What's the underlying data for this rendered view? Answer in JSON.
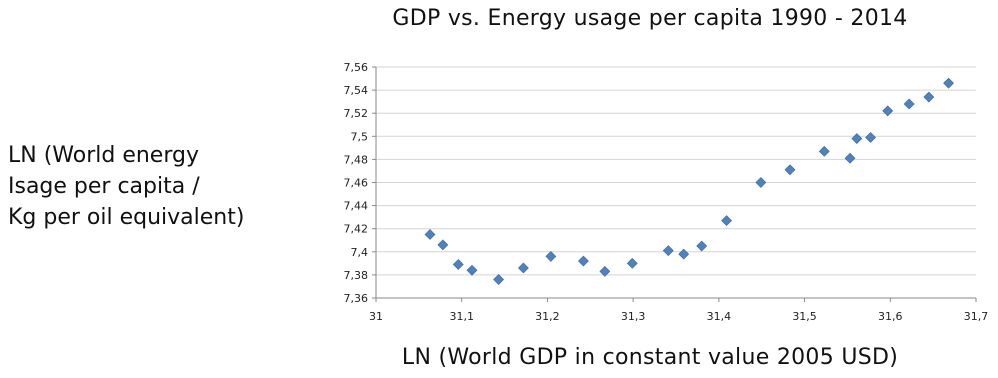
{
  "title_lines": [
    "GDP vs. Energy usage per capita 1990 - 2014"
  ],
  "ylabel_lines": [
    "LN (World energy",
    "Isage per capita /",
    "Kg per oil equivalent)"
  ],
  "xlabel_lines": [
    "LN (World GDP in constant value 2005 USD)"
  ],
  "chart_data": {
    "type": "scatter",
    "title": "GDP vs. Energy usage per capita 1990 - 2014",
    "xlabel": "LN (World GDP in constant value 2005 USD)",
    "ylabel": "LN (World energy Isage per capita / Kg per oil equivalent)",
    "xlim": [
      31,
      31.7
    ],
    "ylim": [
      7.36,
      7.56
    ],
    "x_ticks": [
      "31",
      "31,1",
      "31,2",
      "31,3",
      "31,4",
      "31,5",
      "31,6",
      "31,7"
    ],
    "y_ticks": [
      "7,36",
      "7,38",
      "7,4",
      "7,42",
      "7,44",
      "7,46",
      "7,48",
      "7,5",
      "7,52",
      "7,54",
      "7,56"
    ],
    "x_tick_values": [
      31,
      31.1,
      31.2,
      31.3,
      31.4,
      31.5,
      31.6,
      31.7
    ],
    "y_tick_values": [
      7.36,
      7.38,
      7.4,
      7.42,
      7.44,
      7.46,
      7.48,
      7.5,
      7.52,
      7.54,
      7.56
    ],
    "grid": "horizontal",
    "marker": "diamond",
    "color": "#4f81bd",
    "points": [
      {
        "x": 31.063,
        "y": 7.415
      },
      {
        "x": 31.078,
        "y": 7.406
      },
      {
        "x": 31.096,
        "y": 7.389
      },
      {
        "x": 31.112,
        "y": 7.384
      },
      {
        "x": 31.143,
        "y": 7.376
      },
      {
        "x": 31.172,
        "y": 7.386
      },
      {
        "x": 31.204,
        "y": 7.396
      },
      {
        "x": 31.242,
        "y": 7.392
      },
      {
        "x": 31.267,
        "y": 7.383
      },
      {
        "x": 31.299,
        "y": 7.39
      },
      {
        "x": 31.341,
        "y": 7.401
      },
      {
        "x": 31.359,
        "y": 7.398
      },
      {
        "x": 31.38,
        "y": 7.405
      },
      {
        "x": 31.409,
        "y": 7.427
      },
      {
        "x": 31.449,
        "y": 7.46
      },
      {
        "x": 31.483,
        "y": 7.471
      },
      {
        "x": 31.523,
        "y": 7.487
      },
      {
        "x": 31.553,
        "y": 7.481
      },
      {
        "x": 31.561,
        "y": 7.498
      },
      {
        "x": 31.577,
        "y": 7.499
      },
      {
        "x": 31.597,
        "y": 7.522
      },
      {
        "x": 31.622,
        "y": 7.528
      },
      {
        "x": 31.645,
        "y": 7.534
      },
      {
        "x": 31.668,
        "y": 7.546
      }
    ]
  }
}
